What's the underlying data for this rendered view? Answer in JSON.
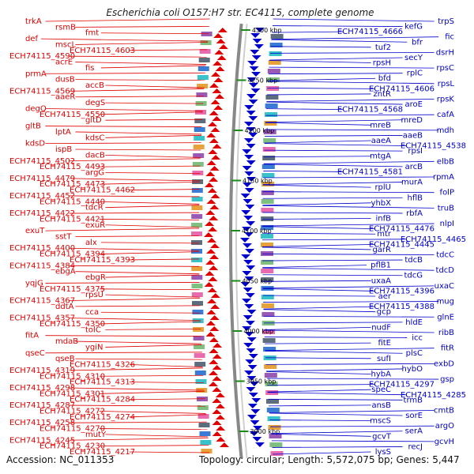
{
  "title": "Escherichia coli O157:H7 str. EC4115, complete genome",
  "footer": {
    "accession": "Accession: NC_011353",
    "topology": "Topology: circular; Length: 5,572,075 bp; Genes: 5,447"
  },
  "colors": {
    "forward": "#e00000",
    "reverse": "#0000cc",
    "backbone": "#888888",
    "tick": "#1a8a1a"
  },
  "kbp_ticks": [
    "4300 kbp",
    "4250 kbp",
    "4200 kbp",
    "4150 kbp",
    "4100 kbp",
    "4050 kbp",
    "4000 kbp",
    "3950 kbp",
    "3900 kbp"
  ],
  "left_genes": [
    "trkA",
    "rsmB",
    "fmt",
    "def",
    "mscL",
    "ECH74115_4603",
    "ECH74115_4590",
    "acrE",
    "fis",
    "prmA",
    "dusB",
    "accB",
    "ECH74115_4569",
    "aaeR",
    "degS",
    "degQ",
    "ECH74115_4550",
    "gltD",
    "gltB",
    "lptA",
    "kdsC",
    "kdsD",
    "ispB",
    "dacB",
    "ECH74115_4502",
    "ECH74115_4493",
    "argG",
    "ECH74115_4479",
    "ECH74115_4473",
    "ECH74115_4462",
    "ECH74115_4452",
    "ECH74115_4440",
    "tdcR",
    "ECH74115_4422",
    "ECH74115_4421",
    "exuR",
    "exuT",
    "sstT",
    "alx",
    "ECH74115_4400",
    "ECH74115_4394",
    "ECH74115_4393",
    "ECH74115_4384",
    "ebgA",
    "ebgR",
    "yqjG",
    "ECH74115_4375",
    "rpsU",
    "ECH74115_4367",
    "ddtA",
    "cca",
    "ECH74115_4357",
    "ECH74115_4350",
    "tolC",
    "fitA",
    "mdaB",
    "ygiN",
    "qseC",
    "qseB",
    "ECH74115_4326",
    "ECH74115_4319",
    "ECH74115_4310",
    "ECH74115_4313",
    "ECH74115_4298",
    "ECH74115_4301",
    "ECH74115_4284",
    "ECH74115_4287",
    "ECH74115_4272",
    "ECH74115_4274",
    "ECH74115_4258",
    "ECH74115_4270",
    "mutY",
    "ECH74115_4245",
    "ECH74115_4230",
    "ECH74115_4217"
  ],
  "right_genes": [
    "trpS",
    "kefG",
    "ECH74115_4666",
    "fic",
    "bfr",
    "tuf2",
    "dsrH",
    "secY",
    "rpsH",
    "rpsC",
    "rplC",
    "bfd",
    "rpsL",
    "ECH74115_4606",
    "zntR",
    "rpsK",
    "aroE",
    "ECH74115_4568",
    "cafA",
    "mreD",
    "mreB",
    "mdh",
    "aaeB",
    "aaeA",
    "ECH74115_4538",
    "rpsI",
    "mtgA",
    "elbB",
    "arcB",
    "ECH74115_4581",
    "rpmA",
    "murA",
    "rplU",
    "folP",
    "hflB",
    "yhbX",
    "truB",
    "rbfA",
    "infB",
    "nlpI",
    "ECH74115_4476",
    "mtr",
    "ECH74115_4465",
    "ECH74115_4445",
    "garR",
    "tdcC",
    "tdcB",
    "pflB1",
    "tdcD",
    "tdcG",
    "uxaA",
    "uxaC",
    "ECH74115_4396",
    "aer",
    "mug",
    "ECH74115_4388",
    "gcp",
    "glnE",
    "hldE",
    "nudF",
    "ribB",
    "icc",
    "fitE",
    "fitR",
    "plsC",
    "sufI",
    "exbD",
    "hybO",
    "hybA",
    "gsp",
    "ECH74115_4297",
    "speC",
    "ECH74115_4285",
    "trmB",
    "ansB",
    "cmtB",
    "sorE",
    "mscS",
    "argO",
    "serA",
    "gcvT",
    "gcvH",
    "recJ",
    "lysS"
  ]
}
